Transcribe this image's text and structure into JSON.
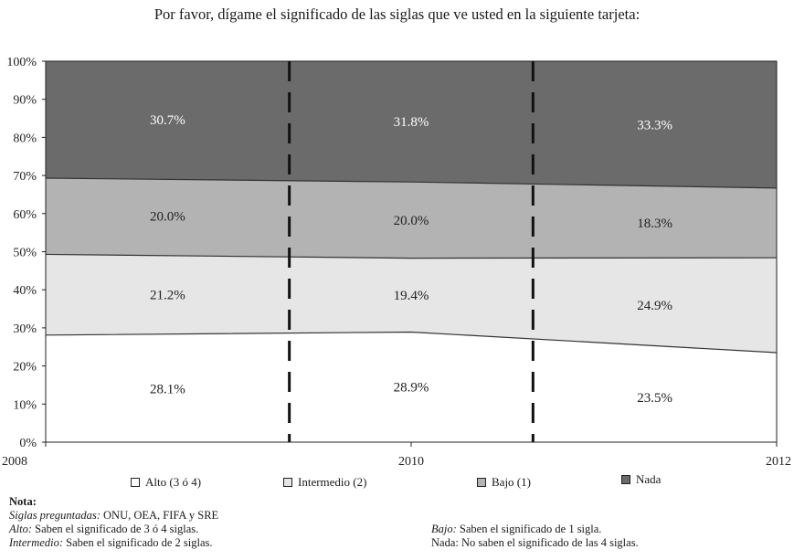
{
  "title": "Por favor, dígame el significado de las siglas que ve usted en la siguiente tarjeta:",
  "chart_data": {
    "type": "area",
    "stacked": true,
    "x": [
      "2008",
      "2010",
      "2012"
    ],
    "series": [
      {
        "name": "Alto (3 ó 4)",
        "values": [
          28.1,
          28.9,
          23.5
        ],
        "labels": [
          "28.1%",
          "28.9%",
          "23.5%"
        ],
        "color": "#ffffff"
      },
      {
        "name": "Intermedio (2)",
        "values": [
          21.2,
          19.4,
          24.9
        ],
        "labels": [
          "21.2%",
          "19.4%",
          "24.9%"
        ],
        "color": "#e6e6e6"
      },
      {
        "name": "Bajo (1)",
        "values": [
          20.0,
          20.0,
          18.3
        ],
        "labels": [
          "20.0%",
          "20.0%",
          "18.3%"
        ],
        "color": "#b3b3b3"
      },
      {
        "name": "Nada",
        "values": [
          30.7,
          31.8,
          33.3
        ],
        "labels": [
          "30.7%",
          "31.8%",
          "33.3%"
        ],
        "color": "#6b6b6b"
      }
    ],
    "ylim": [
      0,
      100
    ],
    "yticks": [
      "0%",
      "10%",
      "20%",
      "30%",
      "40%",
      "50%",
      "60%",
      "70%",
      "80%",
      "90%",
      "100%"
    ],
    "legend_position": "bottom"
  },
  "notes": {
    "heading": "Nota:",
    "siglas_label": "Siglas preguntadas:",
    "siglas_text": " ONU, OEA, FIFA y SRE",
    "alto_label": "Alto:",
    "alto_text": " Saben el significado de 3 ó 4 siglas.",
    "intermedio_label": "Intermedio:",
    "intermedio_text": " Saben el significado de 2 siglas.",
    "bajo_label": "Bajo:",
    "bajo_text": " Saben el significado de 1 sigla.",
    "nada_text": "Nada: No saben el significado de las 4 siglas."
  }
}
